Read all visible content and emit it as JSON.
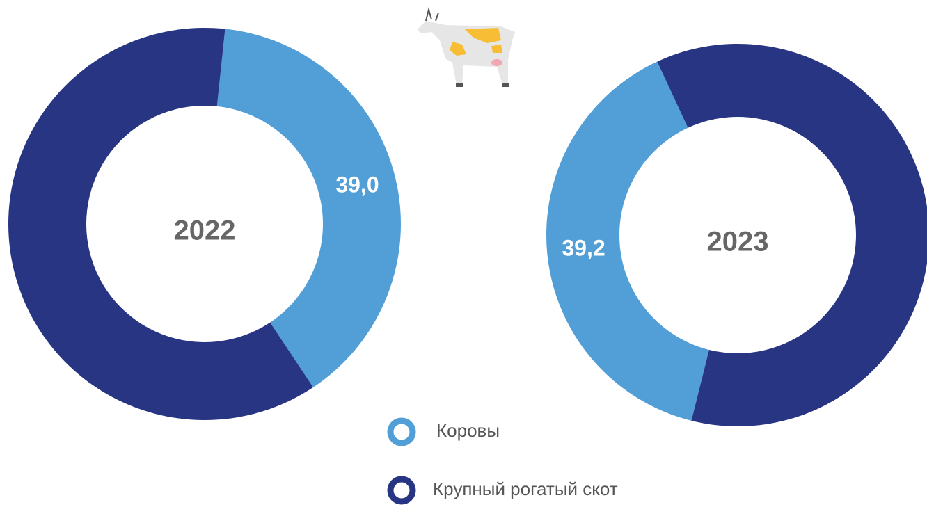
{
  "chart_data": [
    {
      "type": "donut",
      "title": "2022",
      "categories": [
        "Коровы",
        "Крупный рогатый скот"
      ],
      "values": [
        39.0,
        61.0
      ],
      "value_labels": [
        "39,0",
        null
      ],
      "colors": [
        "#529fd7",
        "#283583"
      ]
    },
    {
      "type": "donut",
      "title": "2023",
      "categories": [
        "Коровы",
        "Крупный рогатый скот"
      ],
      "values": [
        39.2,
        60.8
      ],
      "value_labels": [
        "39,2",
        null
      ],
      "colors": [
        "#529fd7",
        "#283583"
      ]
    }
  ]
}
